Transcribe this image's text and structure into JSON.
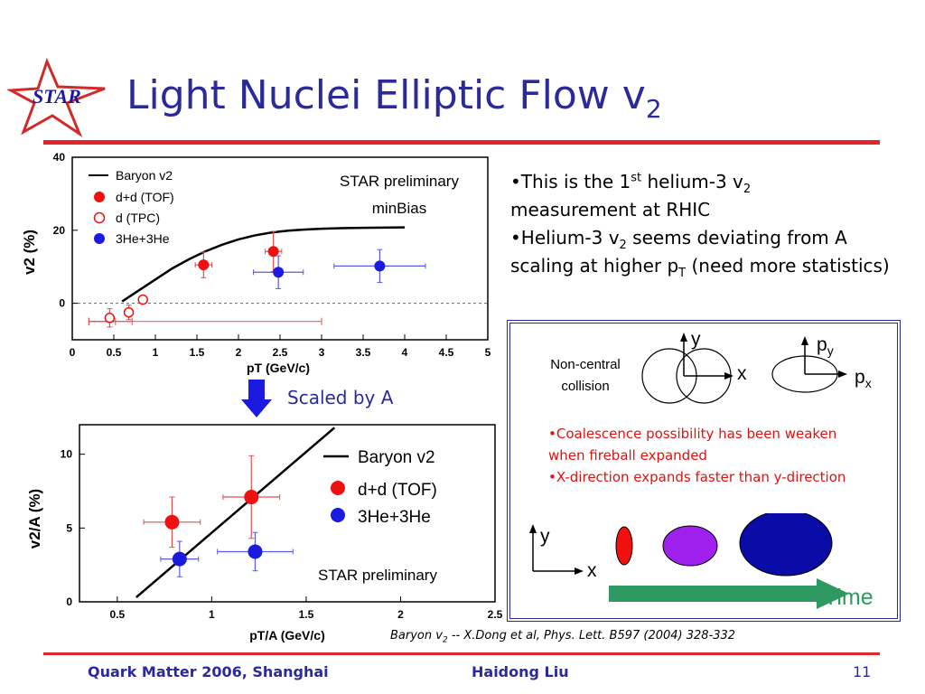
{
  "slide": {
    "title_main": "Light Nuclei Elliptic Flow v",
    "title_sub": "2",
    "logo_text": "STAR"
  },
  "colors": {
    "title": "#2a2a9c",
    "accent_red": "#e3262e",
    "blue": "#1a1ae0",
    "red": "#f01010",
    "green": "#2e9a62",
    "purple": "#a020f0",
    "navy": "#0b0ba8"
  },
  "bullets": {
    "b1_a": "•This is the 1",
    "b1_sup": "st",
    "b1_b": " helium-3 v",
    "b1_sub": "2",
    "b1_c": "measurement at RHIC",
    "b2_a": "•Helium-3 v",
    "b2_sub": "2",
    "b2_b": " seems deviating from A scaling at higher p",
    "b2_sub2": "T",
    "b2_c": " (need more statistics)"
  },
  "arrow_label": "Scaled by A",
  "chart_data": [
    {
      "type": "scatter",
      "xlabel": "pT (GeV/c)",
      "ylabel": "v2 (%)",
      "xlim": [
        0,
        5
      ],
      "ylim": [
        -10,
        40
      ],
      "xticks": [
        0,
        0.5,
        1,
        1.5,
        2,
        2.5,
        3,
        3.5,
        4,
        4.5,
        5
      ],
      "yticks": [
        0,
        20,
        40
      ],
      "annotation_line1": "STAR preliminary",
      "annotation_line2": "minBias",
      "legend": [
        "Baryon v2",
        "d+d (TOF)",
        "d (TPC)",
        "3He+3He"
      ],
      "series": [
        {
          "name": "Baryon v2",
          "style": "curve",
          "x": [
            0.6,
            0.8,
            1.0,
            1.2,
            1.4,
            1.6,
            1.8,
            2.0,
            2.2,
            2.4,
            2.6,
            2.8,
            3.0,
            3.3,
            3.6,
            4.0
          ],
          "values": [
            0.5,
            3.5,
            6.5,
            9.5,
            12.0,
            14.2,
            16.0,
            17.5,
            18.6,
            19.4,
            19.9,
            20.2,
            20.4,
            20.6,
            20.7,
            20.8
          ]
        },
        {
          "name": "d+d (TOF)",
          "style": "filled-red",
          "x": [
            1.58,
            2.42
          ],
          "values": [
            10.5,
            14.2
          ],
          "yerr": [
            3.5,
            5.5
          ],
          "xerr": [
            0.1,
            0.1
          ]
        },
        {
          "name": "d (TPC)",
          "style": "open-red",
          "x": [
            0.45,
            0.68,
            0.85
          ],
          "values": [
            -4.0,
            -2.5,
            1.0
          ],
          "yerr": [
            2.5,
            2.0,
            1.0
          ],
          "xerr": [
            0.0,
            0.0,
            0.0
          ],
          "ranges": [
            [
              0.2,
              0.52
            ],
            [
              0.2,
              0.72
            ],
            [
              0.2,
              3.0
            ]
          ]
        },
        {
          "name": "3He+3He",
          "style": "filled-blue",
          "x": [
            2.48,
            3.7
          ],
          "values": [
            8.5,
            10.2
          ],
          "yerr": [
            4.5,
            4.5
          ],
          "xerr": [
            0.3,
            0.55
          ]
        }
      ]
    },
    {
      "type": "scatter",
      "xlabel": "pT/A (GeV/c)",
      "ylabel": "v2/A (%)",
      "xlim": [
        0.3,
        2.5
      ],
      "ylim": [
        0,
        12
      ],
      "xticks": [
        0.5,
        1,
        1.5,
        2,
        2.5
      ],
      "yticks": [
        0,
        5,
        10
      ],
      "annotation": "STAR preliminary",
      "legend": [
        "Baryon v2",
        "d+d (TOF)",
        "3He+3He"
      ],
      "series": [
        {
          "name": "Baryon v2",
          "style": "line",
          "x": [
            0.6,
            1.65
          ],
          "values": [
            0.3,
            11.8
          ]
        },
        {
          "name": "d+d (TOF)",
          "style": "filled-red",
          "x": [
            0.79,
            1.21
          ],
          "values": [
            5.4,
            7.1
          ],
          "yerr": [
            1.7,
            2.8
          ],
          "xerr": [
            0.15,
            0.15
          ]
        },
        {
          "name": "3He+3He",
          "style": "filled-blue",
          "x": [
            0.83,
            1.23
          ],
          "values": [
            2.9,
            3.4
          ],
          "yerr": [
            1.2,
            1.3
          ],
          "xerr": [
            0.1,
            0.2
          ]
        }
      ]
    }
  ],
  "diagram": {
    "collision_label_1": "Non-central",
    "collision_label_2": "collision",
    "axis_x": "x",
    "axis_y": "y",
    "momentum_x": "p",
    "momentum_x_sub": "x",
    "momentum_y": "p",
    "momentum_y_sub": "y",
    "note_1": "•Coalescence possibility has been weaken when fireball expanded",
    "note_2": "•X-direction expands faster than y-direction",
    "time_label": "Time"
  },
  "credit": {
    "a": "Baryon v",
    "sub": "2",
    "b": " -- X.Dong et al, Phys. Lett. B597 (2004) 328-332"
  },
  "footer": {
    "left": "Quark Matter 2006, Shanghai",
    "middle": "Haidong Liu",
    "page": "11"
  }
}
